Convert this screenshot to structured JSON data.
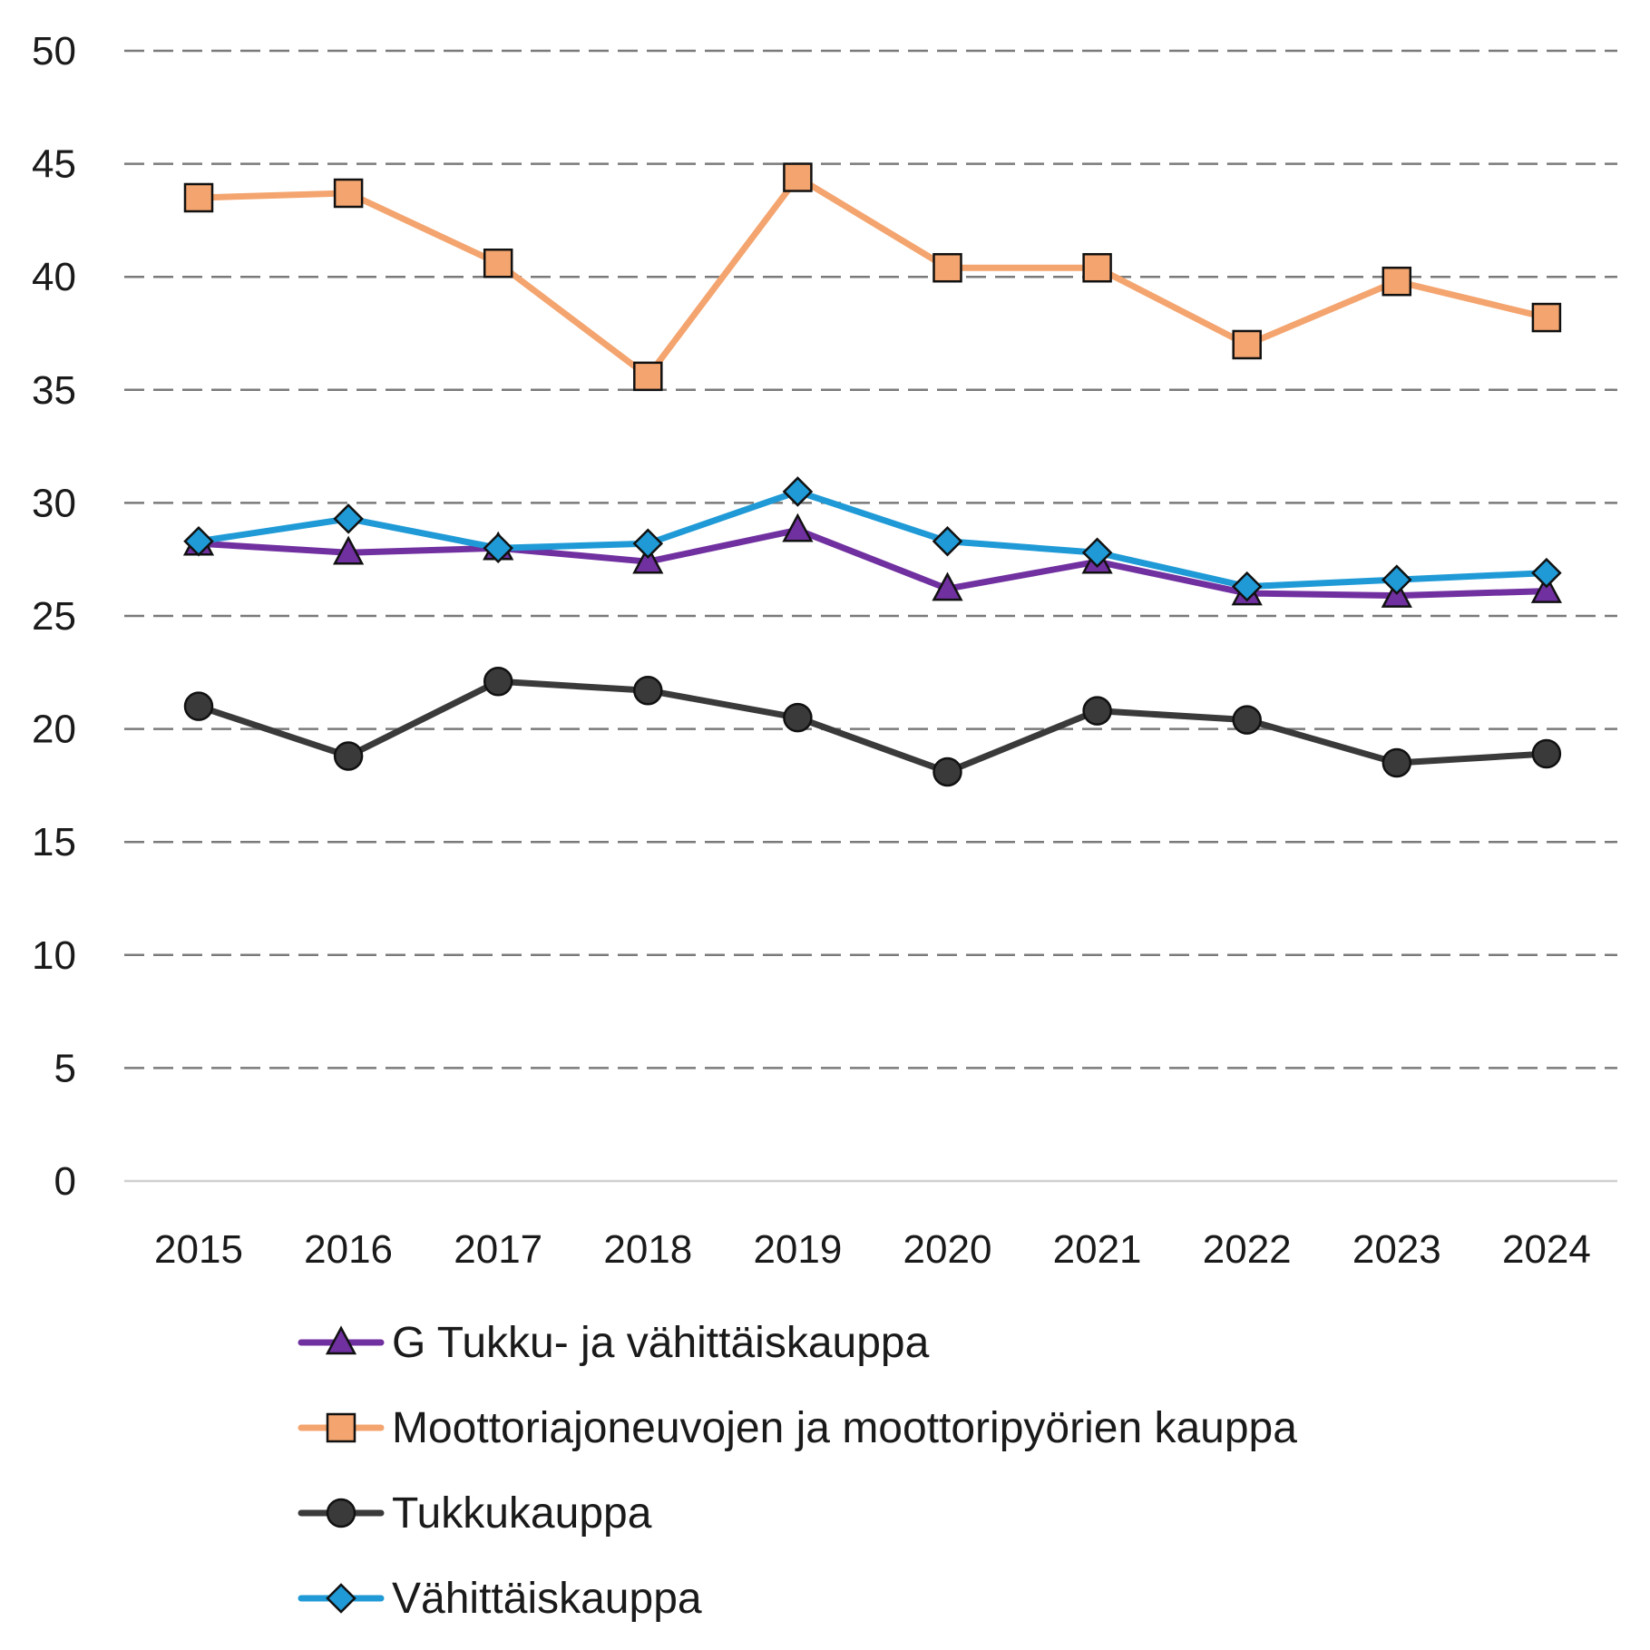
{
  "chart_data": {
    "type": "line",
    "title": "",
    "xlabel": "",
    "ylabel": "",
    "x": [
      "2015",
      "2016",
      "2017",
      "2018",
      "2019",
      "2020",
      "2021",
      "2022",
      "2023",
      "2024"
    ],
    "ylim": [
      0,
      50
    ],
    "yticks": [
      0,
      5,
      10,
      15,
      20,
      25,
      30,
      35,
      40,
      45,
      50
    ],
    "ytick_labels": [
      "0",
      "5",
      "10",
      "15",
      "20",
      "25",
      "30",
      "35",
      "40",
      "45",
      "50"
    ],
    "grid": "horizontal dashed",
    "legend_position": "bottom",
    "series": [
      {
        "name": "G Tukku- ja vähittäiskauppa",
        "color": "#7030a0",
        "marker": "triangle",
        "values": [
          28.2,
          27.8,
          28.0,
          27.4,
          28.8,
          26.2,
          27.4,
          26.0,
          25.9,
          26.1
        ]
      },
      {
        "name": "Moottoriajoneuvojen ja moottoripyörien kauppa",
        "color": "#f4a46e",
        "marker": "square",
        "values": [
          43.5,
          43.7,
          40.6,
          35.6,
          44.4,
          40.4,
          40.4,
          37.0,
          39.8,
          38.2
        ]
      },
      {
        "name": "Tukkukauppa",
        "color": "#3a3a3a",
        "marker": "circle",
        "values": [
          21.0,
          18.8,
          22.1,
          21.7,
          20.5,
          18.1,
          20.8,
          20.4,
          18.5,
          18.9
        ]
      },
      {
        "name": "Vähittäiskauppa",
        "color": "#1f9ad6",
        "marker": "diamond",
        "values": [
          28.3,
          29.3,
          28.0,
          28.2,
          30.5,
          28.3,
          27.8,
          26.3,
          26.6,
          26.9
        ]
      }
    ]
  }
}
